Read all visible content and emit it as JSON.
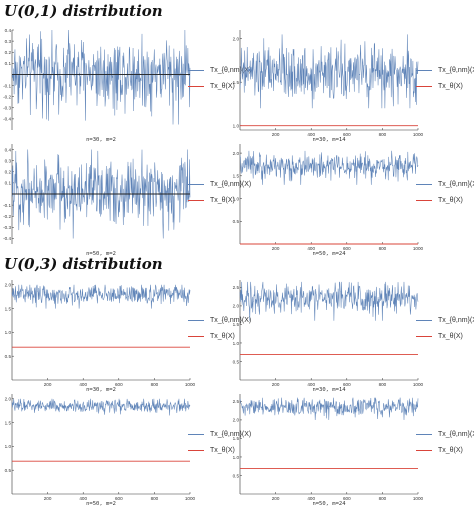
{
  "sections": [
    {
      "title": "U(0,1)  distribution"
    },
    {
      "title": "U(0,3)  distribution"
    }
  ],
  "colors": {
    "series_nm": "#5f84b8",
    "series_theta": "#d9443a",
    "axis": "#333333"
  },
  "chart_data": [
    {
      "type": "line",
      "section": "U(0,1)",
      "caption": "n=30, m=2",
      "xlim": [
        0,
        1000
      ],
      "ylim": [
        -0.5,
        0.4
      ],
      "xticks": [],
      "yticks": [
        0.4,
        0.3,
        0.2,
        0.1,
        -0.1,
        -0.2,
        -0.3,
        -0.4
      ],
      "ytick_labels": [
        "0.4",
        "0.3",
        "0.2",
        "0.1",
        "-0.1",
        "-0.2",
        "-0.3",
        "-0.4"
      ],
      "legend": [
        "Tx_{θ,nm}(X)",
        "Tx_θ(X)"
      ],
      "series": [
        {
          "name": "Tx_{θ,nm}(X)",
          "kind": "noise",
          "x": [
            0,
            1000
          ],
          "mean": 0.02,
          "min": -0.45,
          "max": 0.4,
          "n_points": 1000
        },
        {
          "name": "Tx_θ(X)",
          "kind": "constant",
          "x": [
            0,
            1000
          ],
          "value": 0.0
        }
      ]
    },
    {
      "type": "line",
      "section": "U(0,1)",
      "caption": "n=30, m=14",
      "xlim": [
        0,
        1000
      ],
      "ylim": [
        0.95,
        2.1
      ],
      "xticks": [
        200,
        400,
        600,
        800,
        1000
      ],
      "xtick_labels": [
        "200",
        "400",
        "600",
        "800",
        "1000"
      ],
      "yticks": [
        2.0,
        1.5,
        1.0
      ],
      "ytick_labels": [
        "2.0",
        "1.5",
        "1.0"
      ],
      "legend": [
        "Tx_{θ,nm}(X)",
        "Tx_θ(X)"
      ],
      "series": [
        {
          "name": "Tx_{θ,nm}(X)",
          "kind": "noise",
          "x": [
            0,
            1000
          ],
          "mean": 1.6,
          "min": 1.2,
          "max": 2.05,
          "n_points": 1000
        },
        {
          "name": "Tx_θ(X)",
          "kind": "constant",
          "x": [
            0,
            1000
          ],
          "value": 1.0
        }
      ]
    },
    {
      "type": "line",
      "section": "U(0,1)",
      "caption": "n=50, m=2",
      "xlim": [
        0,
        1000
      ],
      "ylim": [
        -0.45,
        0.45
      ],
      "xticks": [],
      "yticks": [
        0.4,
        0.3,
        0.2,
        0.1,
        -0.1,
        -0.2,
        -0.3,
        -0.4
      ],
      "ytick_labels": [
        "0.4",
        "0.3",
        "0.2",
        "0.1",
        "-0.1",
        "-0.2",
        "-0.3",
        "-0.4"
      ],
      "legend": [
        "Tx_{θ,nm}(X)",
        "Tx_θ(X)"
      ],
      "series": [
        {
          "name": "Tx_{θ,nm}(X)",
          "kind": "noise",
          "x": [
            0,
            1000
          ],
          "mean": 0.03,
          "min": -0.4,
          "max": 0.4,
          "n_points": 1000
        },
        {
          "name": "Tx_θ(X)",
          "kind": "constant",
          "x": [
            0,
            1000
          ],
          "value": 0.0
        }
      ]
    },
    {
      "type": "line",
      "section": "U(0,1)",
      "caption": "n=50, m=24",
      "xlim": [
        0,
        1000
      ],
      "ylim": [
        0.0,
        2.2
      ],
      "xticks": [
        200,
        400,
        600,
        800,
        1000
      ],
      "xtick_labels": [
        "200",
        "400",
        "600",
        "800",
        "1000"
      ],
      "yticks": [
        2.0,
        1.5,
        1.0,
        0.5
      ],
      "ytick_labels": [
        "2.0",
        "1.5",
        "1.0",
        "0.5"
      ],
      "legend": [
        "Tx_{θ,nm}(X)",
        "Tx_θ(X)"
      ],
      "series": [
        {
          "name": "Tx_{θ,nm}(X)",
          "kind": "noise",
          "x": [
            0,
            1000
          ],
          "mean": 1.7,
          "min": 1.3,
          "max": 2.05,
          "n_points": 1000
        },
        {
          "name": "Tx_θ(X)",
          "kind": "constant",
          "x": [
            0,
            1000
          ],
          "value": 0.0
        }
      ]
    },
    {
      "type": "line",
      "section": "U(0,3)",
      "caption": "n=30, m=2",
      "xlim": [
        0,
        1000
      ],
      "ylim": [
        0.0,
        2.1
      ],
      "xticks": [
        200,
        400,
        600,
        800,
        1000
      ],
      "xtick_labels": [
        "200",
        "400",
        "600",
        "800",
        "1000"
      ],
      "yticks": [
        2.0,
        1.5,
        1.0,
        0.5
      ],
      "ytick_labels": [
        "2.0",
        "1.5",
        "1.0",
        "0.5"
      ],
      "legend": [
        "Tx_{θ,nm}(X)",
        "Tx_θ(X)"
      ],
      "series": [
        {
          "name": "Tx_{θ,nm}(X)",
          "kind": "noise",
          "x": [
            0,
            1000
          ],
          "mean": 1.8,
          "min": 1.5,
          "max": 2.0,
          "n_points": 1000
        },
        {
          "name": "Tx_θ(X)",
          "kind": "constant",
          "x": [
            0,
            1000
          ],
          "value": 0.69
        }
      ]
    },
    {
      "type": "line",
      "section": "U(0,3)",
      "caption": "n=30, m=14",
      "xlim": [
        0,
        1000
      ],
      "ylim": [
        0.0,
        2.7
      ],
      "xticks": [
        200,
        400,
        600,
        800,
        1000
      ],
      "xtick_labels": [
        "200",
        "400",
        "600",
        "800",
        "1000"
      ],
      "yticks": [
        2.5,
        2.0,
        1.5,
        1.0,
        0.5
      ],
      "ytick_labels": [
        "2.5",
        "2.0",
        "1.5",
        "1.0",
        "0.5"
      ],
      "legend": [
        "Tx_{θ,nm}(X)",
        "Tx_θ(X)"
      ],
      "series": [
        {
          "name": "Tx_{θ,nm}(X)",
          "kind": "noise",
          "x": [
            0,
            1000
          ],
          "mean": 2.2,
          "min": 1.6,
          "max": 2.65,
          "n_points": 1000
        },
        {
          "name": "Tx_θ(X)",
          "kind": "constant",
          "x": [
            0,
            1000
          ],
          "value": 0.69
        }
      ]
    },
    {
      "type": "line",
      "section": "U(0,3)",
      "caption": "n=50, m=2",
      "xlim": [
        0,
        1000
      ],
      "ylim": [
        0.0,
        2.1
      ],
      "xticks": [
        200,
        400,
        600,
        800,
        1000
      ],
      "xtick_labels": [
        "200",
        "400",
        "600",
        "800",
        "1000"
      ],
      "yticks": [
        2.0,
        1.5,
        1.0,
        0.5
      ],
      "ytick_labels": [
        "2.0",
        "1.5",
        "1.0",
        "0.5"
      ],
      "legend": [
        "Tx_{θ,nm}(X)",
        "Tx_θ(X)"
      ],
      "series": [
        {
          "name": "Tx_{θ,nm}(X)",
          "kind": "noise",
          "x": [
            0,
            1000
          ],
          "mean": 1.85,
          "min": 1.65,
          "max": 2.0,
          "n_points": 1000
        },
        {
          "name": "Tx_θ(X)",
          "kind": "constant",
          "x": [
            0,
            1000
          ],
          "value": 0.69
        }
      ]
    },
    {
      "type": "line",
      "section": "U(0,3)",
      "caption": "n=50, m=24",
      "xlim": [
        0,
        1000
      ],
      "ylim": [
        0.0,
        2.7
      ],
      "xticks": [
        200,
        400,
        600,
        800,
        1000
      ],
      "xtick_labels": [
        "200",
        "400",
        "600",
        "800",
        "1000"
      ],
      "yticks": [
        2.5,
        2.0,
        1.5,
        1.0,
        0.5
      ],
      "ytick_labels": [
        "2.5",
        "2.0",
        "1.5",
        "1.0",
        "0.5"
      ],
      "legend": [
        "Tx_{θ,nm}(X)",
        "Tx_θ(X)"
      ],
      "series": [
        {
          "name": "Tx_{θ,nm}(X)",
          "kind": "noise",
          "x": [
            0,
            1000
          ],
          "mean": 2.35,
          "min": 2.0,
          "max": 2.6,
          "n_points": 1000
        },
        {
          "name": "Tx_θ(X)",
          "kind": "constant",
          "x": [
            0,
            1000
          ],
          "value": 0.69
        }
      ]
    }
  ]
}
